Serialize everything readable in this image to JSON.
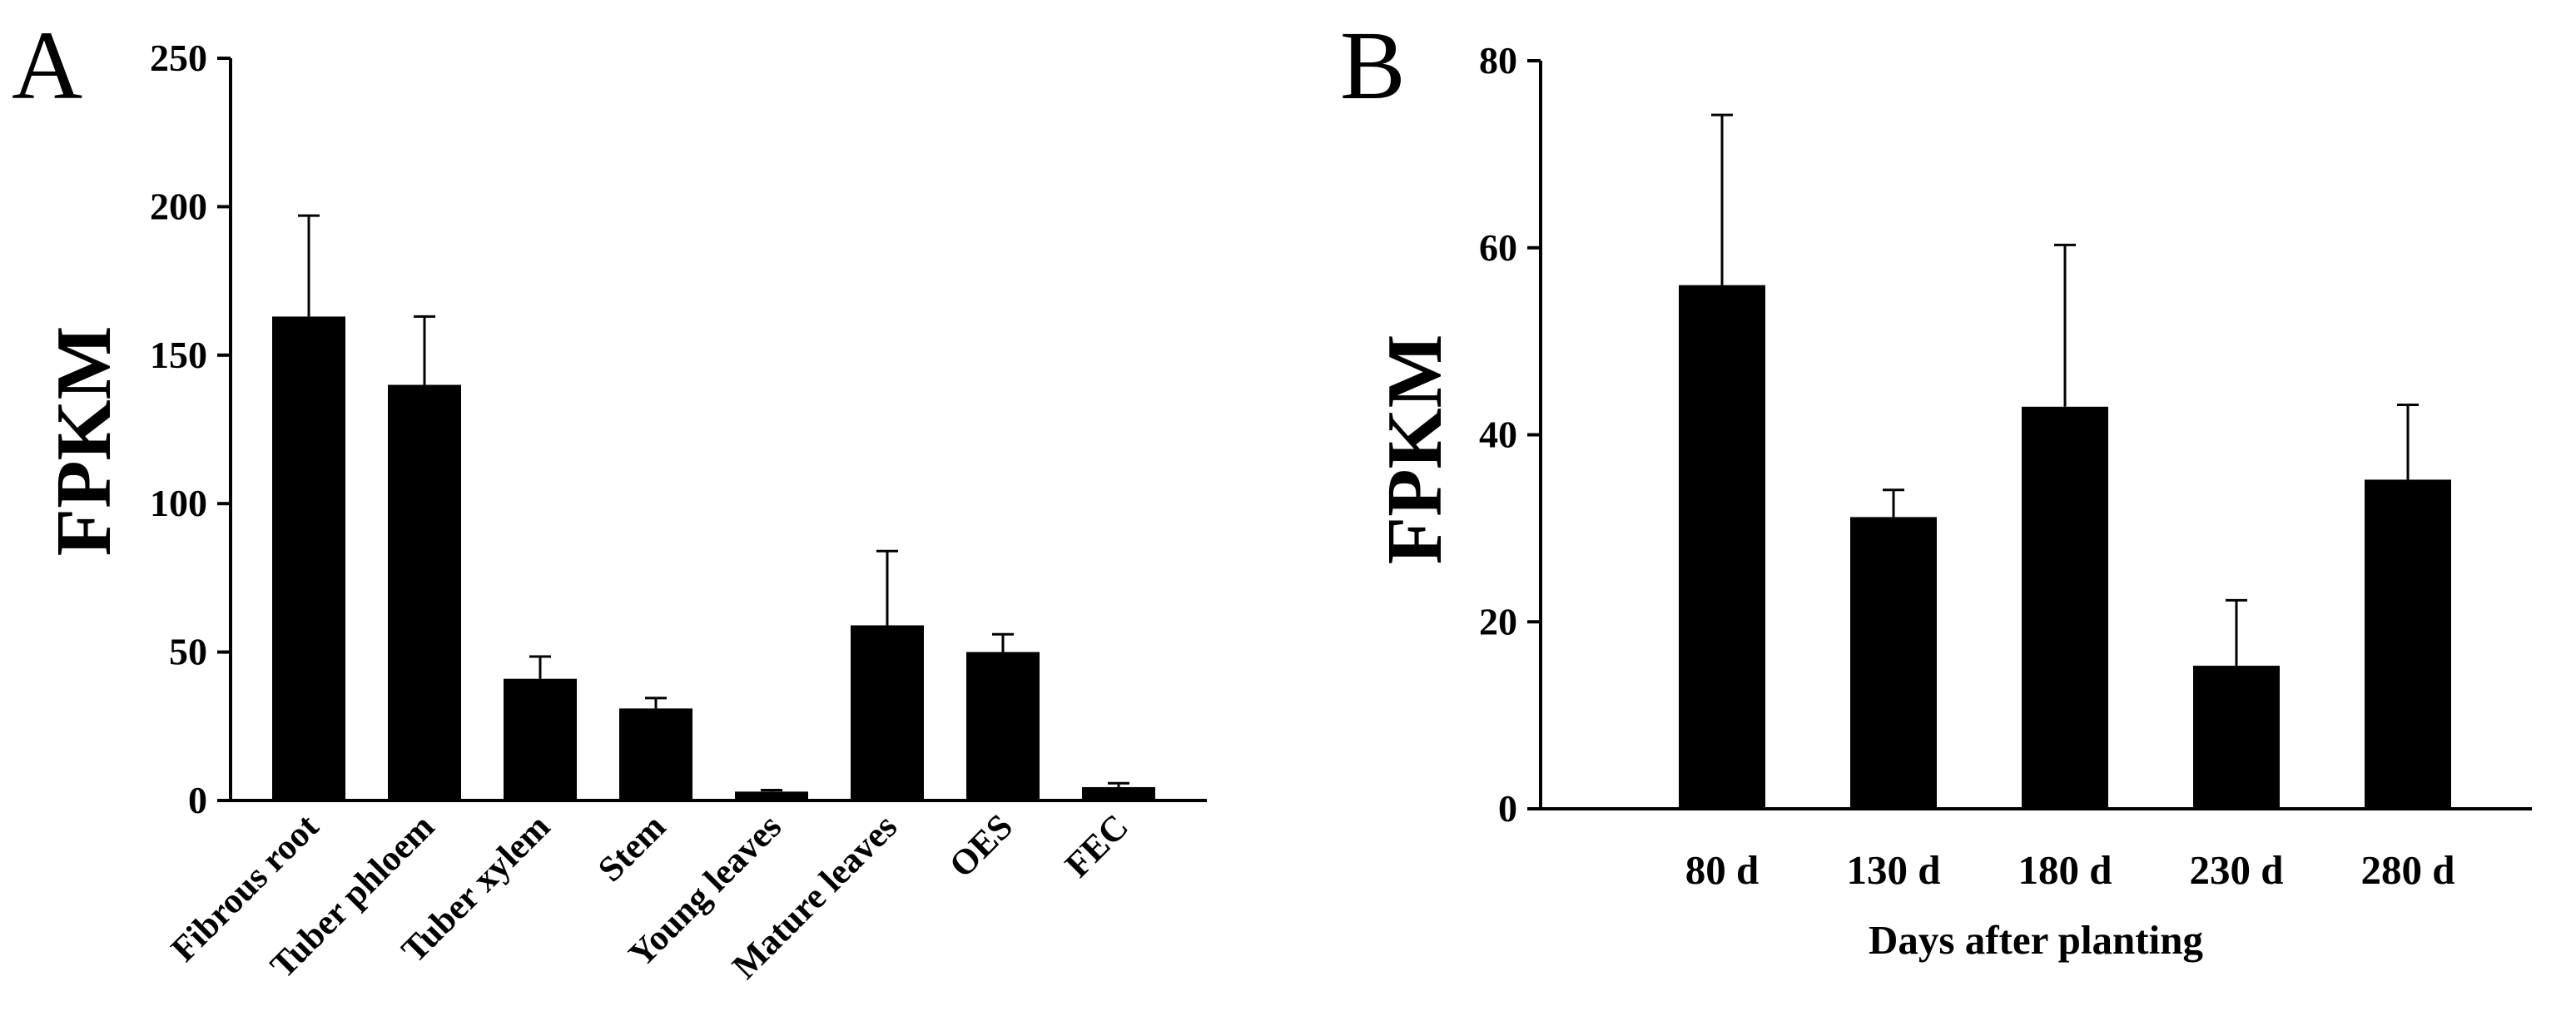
{
  "chart_data": [
    {
      "type": "bar",
      "panel_label": "A",
      "title": "",
      "xlabel": "",
      "ylabel": "FPKM",
      "ylim": [
        0,
        250
      ],
      "yticks": [
        0,
        50,
        100,
        150,
        200,
        250
      ],
      "categories": [
        "Fibrous root",
        "Tuber phloem",
        "Tuber xylem",
        "Stem",
        "Young leaves",
        "Mature leaves",
        "OES",
        "FEC"
      ],
      "values": [
        163,
        140,
        41,
        31,
        3,
        59,
        50,
        4.5
      ],
      "errors": [
        34,
        23,
        7.5,
        3.5,
        0.5,
        25,
        6,
        1.3
      ],
      "grid": false,
      "bar_color": "#000000"
    },
    {
      "type": "bar",
      "panel_label": "B",
      "title": "",
      "xlabel": "Days after planting",
      "ylabel": "FPKM",
      "ylim": [
        0,
        80
      ],
      "yticks": [
        0,
        20,
        40,
        60,
        80
      ],
      "categories": [
        "80 d",
        "130 d",
        "180 d",
        "230 d",
        "280 d"
      ],
      "values": [
        56,
        31.2,
        43,
        15.3,
        35.2
      ],
      "errors": [
        18.2,
        2.9,
        17.3,
        7,
        8
      ],
      "grid": false,
      "bar_color": "#000000"
    }
  ]
}
